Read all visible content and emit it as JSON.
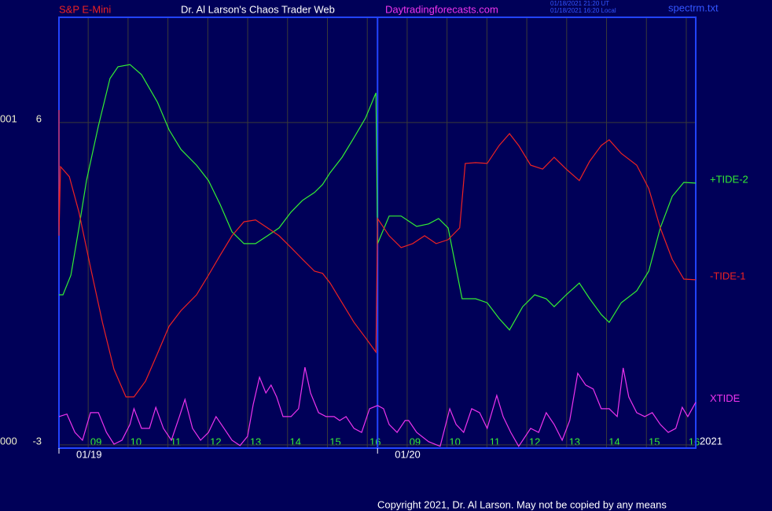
{
  "chart_data": {
    "type": "line",
    "symbol": "S&P E-Mini",
    "title": "Dr. Al Larson's Chaos Trader Web",
    "site": "Daytradingforecasts.com",
    "timestamps": [
      "01/18/2021 21:20 UT",
      "01/18/2021 16:20 Local"
    ],
    "file": "spectrm.txt",
    "copyright": "Copyright 2021, Dr. Al Larson. May not be copied by any means",
    "year_label": "2021",
    "left_labels": [
      "001",
      "000"
    ],
    "xlim": [
      0.07,
      16.04
    ],
    "ylim": [
      -3.09,
      8.94
    ],
    "yticks": [
      6,
      -3
    ],
    "grid": true,
    "xticks": [
      {
        "value": 1,
        "label": "09"
      },
      {
        "value": 2,
        "label": "10"
      },
      {
        "value": 3,
        "label": "11"
      },
      {
        "value": 4,
        "label": "12"
      },
      {
        "value": 5,
        "label": "13"
      },
      {
        "value": 6,
        "label": "14"
      },
      {
        "value": 7,
        "label": "15"
      },
      {
        "value": 8,
        "label": "16"
      },
      {
        "value": 9,
        "label": "09"
      },
      {
        "value": 10,
        "label": "10"
      },
      {
        "value": 11,
        "label": "11"
      },
      {
        "value": 12,
        "label": "12"
      },
      {
        "value": 13,
        "label": "13"
      },
      {
        "value": 14,
        "label": "14"
      },
      {
        "value": 15,
        "label": "15"
      },
      {
        "value": 16,
        "label": "16"
      }
    ],
    "date_ticks": [
      {
        "value": 0.07,
        "label": "01/19"
      },
      {
        "value": 8.06,
        "label": "01/20"
      }
    ],
    "series": [
      {
        "name": "+TIDE-2",
        "color": "#33ee33",
        "x": [
          0.07,
          0.17,
          0.37,
          0.57,
          0.76,
          1.06,
          1.35,
          1.55,
          1.85,
          2.14,
          2.54,
          2.83,
          3.13,
          3.52,
          3.82,
          4.11,
          4.41,
          4.71,
          5.0,
          5.3,
          5.59,
          5.89,
          6.18,
          6.48,
          6.68,
          6.87,
          7.17,
          7.47,
          7.76,
          8.02,
          8.06,
          8.35,
          8.65,
          9.04,
          9.34,
          9.59,
          9.83,
          10.18,
          10.52,
          10.81,
          11.11,
          11.37,
          11.7,
          12.0,
          12.29,
          12.49,
          12.79,
          13.12,
          13.38,
          13.67,
          13.87,
          14.17,
          14.56,
          14.86,
          15.15,
          15.45,
          15.74,
          16.04
        ],
        "values": [
          1.19,
          1.19,
          1.74,
          3.06,
          4.38,
          5.91,
          7.23,
          7.56,
          7.62,
          7.34,
          6.57,
          5.8,
          5.25,
          4.81,
          4.38,
          3.72,
          2.95,
          2.62,
          2.62,
          2.84,
          3.06,
          3.5,
          3.83,
          4.05,
          4.27,
          4.6,
          5.03,
          5.58,
          6.13,
          6.83,
          2.62,
          3.39,
          3.39,
          3.1,
          3.17,
          3.32,
          3.06,
          1.08,
          1.08,
          0.97,
          0.53,
          0.21,
          0.86,
          1.19,
          1.08,
          0.86,
          1.19,
          1.52,
          1.08,
          0.64,
          0.42,
          0.97,
          1.3,
          1.85,
          3.06,
          3.94,
          4.33,
          4.31
        ]
      },
      {
        "name": "-TIDE-1",
        "color": "#ee2222",
        "x": [
          0.07,
          0.07,
          0.11,
          0.33,
          0.57,
          0.86,
          1.16,
          1.45,
          1.75,
          1.95,
          2.24,
          2.54,
          2.83,
          3.13,
          3.52,
          3.82,
          4.11,
          4.41,
          4.71,
          5.0,
          5.3,
          5.59,
          5.89,
          6.18,
          6.48,
          6.68,
          6.87,
          7.17,
          7.47,
          7.76,
          8.02,
          8.06,
          8.35,
          8.65,
          8.94,
          9.24,
          9.53,
          9.83,
          10.12,
          10.26,
          10.52,
          10.81,
          11.11,
          11.37,
          11.6,
          11.9,
          12.2,
          12.49,
          12.79,
          13.12,
          13.38,
          13.67,
          13.87,
          14.17,
          14.56,
          14.86,
          15.15,
          15.45,
          15.74,
          16.04
        ],
        "values": [
          6.35,
          2.84,
          4.77,
          4.49,
          3.5,
          1.96,
          0.42,
          -0.89,
          -1.66,
          -1.66,
          -1.22,
          -0.45,
          0.31,
          0.75,
          1.19,
          1.74,
          2.29,
          2.84,
          3.23,
          3.28,
          3.06,
          2.84,
          2.51,
          2.18,
          1.85,
          1.79,
          1.52,
          0.97,
          0.42,
          -0.01,
          -0.41,
          3.32,
          2.84,
          2.51,
          2.62,
          2.84,
          2.62,
          2.73,
          3.06,
          4.86,
          4.88,
          4.86,
          5.36,
          5.69,
          5.36,
          4.81,
          4.7,
          5.03,
          4.7,
          4.38,
          4.92,
          5.36,
          5.52,
          5.14,
          4.81,
          4.16,
          3.06,
          2.18,
          1.63,
          1.61
        ]
      },
      {
        "name": "XTIDE",
        "color": "#ee33ee",
        "x": [
          0.07,
          0.27,
          0.47,
          0.66,
          0.86,
          1.06,
          1.26,
          1.45,
          1.65,
          1.85,
          1.95,
          2.14,
          2.34,
          2.5,
          2.69,
          2.89,
          3.09,
          3.23,
          3.42,
          3.62,
          3.82,
          4.01,
          4.21,
          4.41,
          4.61,
          4.8,
          4.94,
          5.1,
          5.26,
          5.39,
          5.53,
          5.69,
          5.89,
          6.08,
          6.24,
          6.38,
          6.58,
          6.77,
          6.97,
          7.11,
          7.27,
          7.47,
          7.66,
          7.86,
          8.06,
          8.21,
          8.35,
          8.55,
          8.75,
          8.84,
          9.04,
          9.34,
          9.63,
          9.87,
          10.03,
          10.22,
          10.42,
          10.62,
          10.81,
          11.05,
          11.21,
          11.4,
          11.6,
          11.9,
          12.1,
          12.29,
          12.49,
          12.69,
          12.88,
          13.08,
          13.28,
          13.47,
          13.67,
          13.87,
          14.07,
          14.22,
          14.36,
          14.56,
          14.76,
          14.95,
          15.15,
          15.35,
          15.54,
          15.7,
          15.84,
          16.04
        ],
        "values": [
          -2.21,
          -2.14,
          -2.65,
          -2.87,
          -2.1,
          -2.1,
          -2.65,
          -2.98,
          -2.87,
          -2.43,
          -1.99,
          -2.54,
          -2.54,
          -1.95,
          -2.54,
          -2.87,
          -2.21,
          -1.73,
          -2.54,
          -2.87,
          -2.65,
          -2.21,
          -2.54,
          -2.87,
          -3.02,
          -2.76,
          -1.88,
          -1.11,
          -1.55,
          -1.33,
          -1.66,
          -2.21,
          -2.21,
          -1.99,
          -0.83,
          -1.55,
          -2.1,
          -2.21,
          -2.21,
          -2.32,
          -2.21,
          -2.54,
          -2.65,
          -1.99,
          -1.9,
          -1.99,
          -2.43,
          -2.65,
          -2.32,
          -2.32,
          -2.65,
          -2.91,
          -3.04,
          -1.99,
          -2.43,
          -2.65,
          -1.99,
          -2.1,
          -2.54,
          -1.62,
          -2.21,
          -2.65,
          -3.04,
          -2.54,
          -2.65,
          -2.1,
          -2.43,
          -2.87,
          -2.32,
          -1.0,
          -1.33,
          -1.44,
          -1.99,
          -1.99,
          -2.21,
          -0.85,
          -1.66,
          -2.1,
          -2.21,
          -2.1,
          -2.43,
          -2.65,
          -2.54,
          -1.95,
          -2.21,
          -1.81
        ]
      }
    ]
  }
}
